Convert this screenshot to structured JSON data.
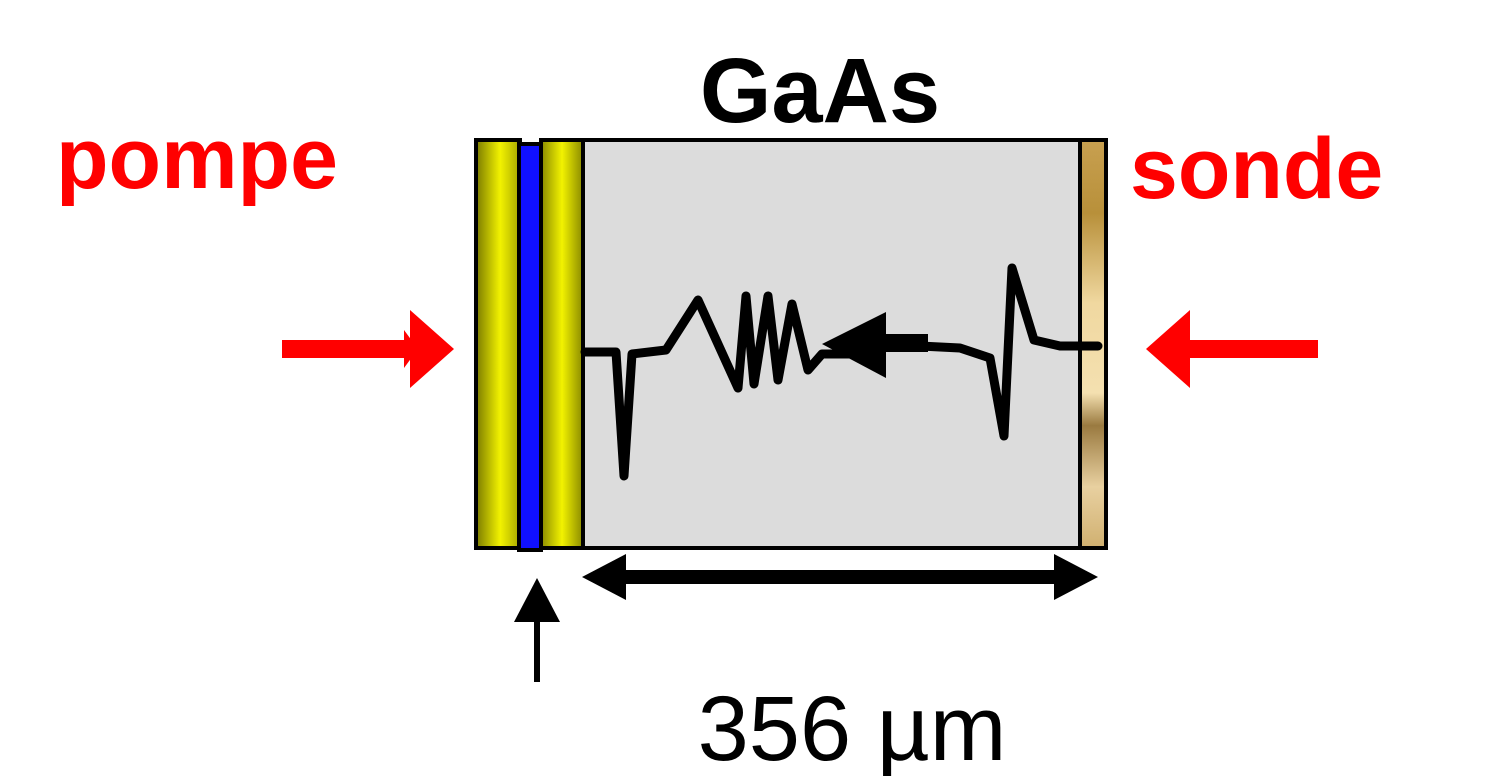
{
  "labels": {
    "material": "GaAs",
    "pump": "pompe",
    "probe": "sonde",
    "thickness": "356 µm"
  },
  "colors": {
    "label_red": "#ff0000",
    "arrow_red": "#ff0000",
    "substrate": "#dcdcdc",
    "gold_layer": "#e6e600",
    "blue_layer": "#1010ff",
    "back_coating": "#e8cc90",
    "strain_pulse": "#000000",
    "outline": "#000000"
  },
  "icons": {
    "pump_arrow": "right-arrow-icon",
    "probe_arrow": "left-arrow-icon",
    "layer_pointer": "up-arrow-icon",
    "propagation": "left-arrow-icon",
    "thickness_span": "double-arrow-icon"
  }
}
